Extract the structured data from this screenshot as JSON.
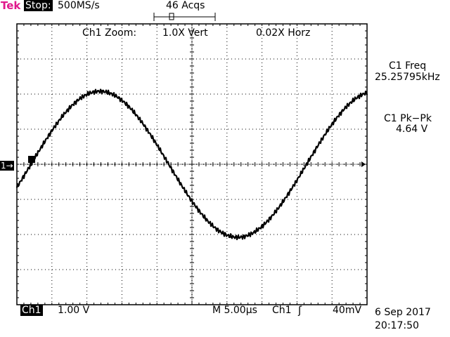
{
  "header": {
    "brand": "Tek",
    "state": "Stop:",
    "sample_rate": "500MS/s",
    "acquisitions": "46 Acqs"
  },
  "zoom": {
    "label": "Ch1 Zoom:",
    "vertical": "1.0X Vert",
    "horizontal": "0.02X Horz"
  },
  "measurements": {
    "freq_label": "C1 Freq",
    "freq_value": "25.25795kHz",
    "pkpk_label": "C1 Pk−Pk",
    "pkpk_value": "4.64 V"
  },
  "footer": {
    "channel": "Ch1",
    "volts_per_div": "1.00 V",
    "timebase": "M 5.00µs",
    "trigger_source": "Ch1",
    "trigger_slope": "ʃ",
    "trigger_level": "40mV",
    "date": "6 Sep 2017",
    "time": "20:17:50"
  },
  "marker": {
    "channel_ground": "1→"
  },
  "colors": {
    "brand": "#e0198c",
    "trace": "#000000",
    "grid": "#000000"
  }
}
